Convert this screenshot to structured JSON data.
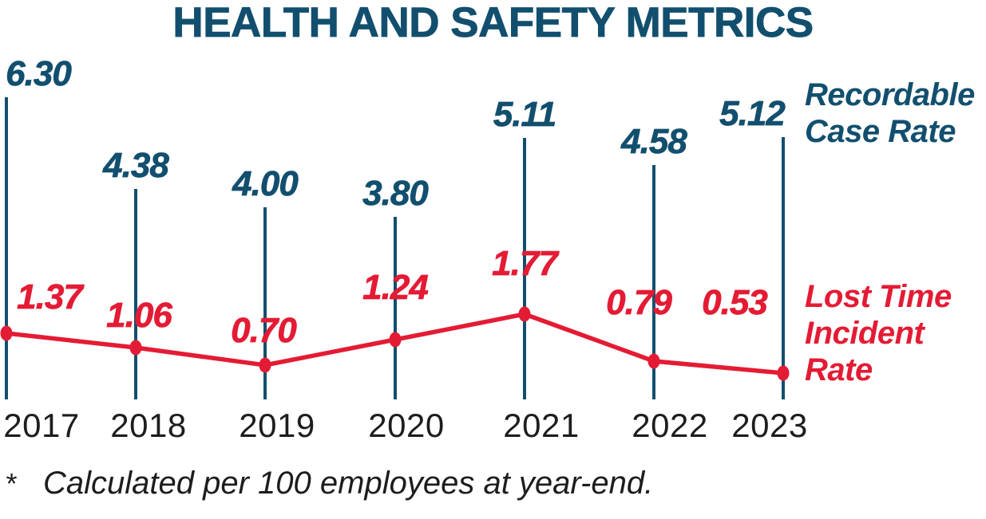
{
  "chart_data": {
    "type": "line",
    "title": "HEALTH AND SAFETY METRICS",
    "categories": [
      "2017",
      "2018",
      "2019",
      "2020",
      "2021",
      "2022",
      "2023"
    ],
    "series": [
      {
        "name": "Recordable Case Rate",
        "style": "vertical-needle-with-top-label",
        "color_key": "navy",
        "values": [
          6.3,
          4.38,
          4.0,
          3.8,
          5.11,
          4.58,
          5.12
        ]
      },
      {
        "name": "Lost Time Incident Rate",
        "style": "line-with-markers",
        "color_key": "red",
        "values": [
          1.37,
          1.06,
          0.7,
          1.24,
          1.77,
          0.79,
          0.53
        ]
      }
    ],
    "xlabel": "",
    "ylabel": "",
    "ylim": [
      0,
      6.3
    ],
    "grid": false,
    "legend_position": "right",
    "value_label_decimals": 2
  },
  "legend": {
    "recordable_lines": [
      "Recordable",
      "Case Rate"
    ],
    "lost_time_lines": [
      "Lost Time",
      "Incident",
      "Rate"
    ]
  },
  "footnote": {
    "marker": "*",
    "text": "Calculated per 100 employees at year-end."
  },
  "colors": {
    "navy": "#124f6e",
    "red": "#e41b34",
    "ink": "#1d1d1b"
  }
}
